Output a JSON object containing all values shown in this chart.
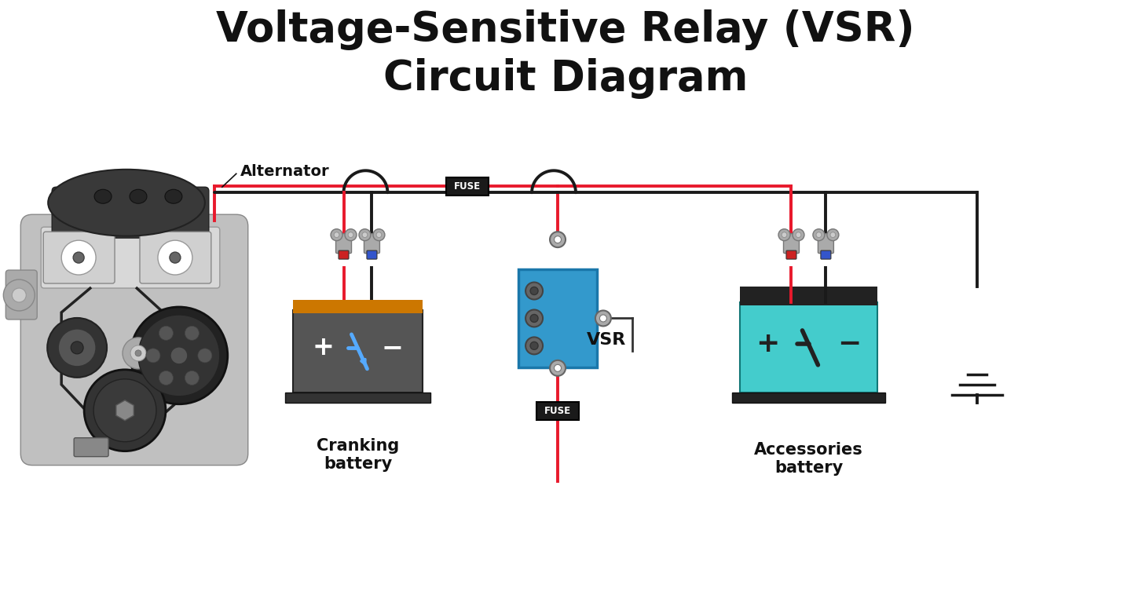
{
  "title_line1": "Voltage-Sensitive Relay (VSR)",
  "title_line2": "Circuit Diagram",
  "title_fontsize": 38,
  "bg_color": "#ffffff",
  "red_wire": "#e8192c",
  "black_wire": "#1a1a1a",
  "fuse_bg": "#1a1a1a",
  "fuse_text": "#ffffff",
  "fuse_label": "FUSE",
  "vsr_color": "#3399cc",
  "vsr_border": "#1a77aa",
  "battery1_body": "#555555",
  "battery1_top_color": "#cc7700",
  "battery2_body": "#44cccc",
  "battery2_top": "#222222",
  "label_cranking": "Cranking\nbattery",
  "label_accessories": "Accessories\nbattery",
  "label_alternator": "Alternator",
  "label_vsr": "VSR",
  "engine_body_light": "#c8c8c8",
  "engine_body_mid": "#999999",
  "engine_body_dark": "#444444",
  "engine_body_darker": "#333333"
}
